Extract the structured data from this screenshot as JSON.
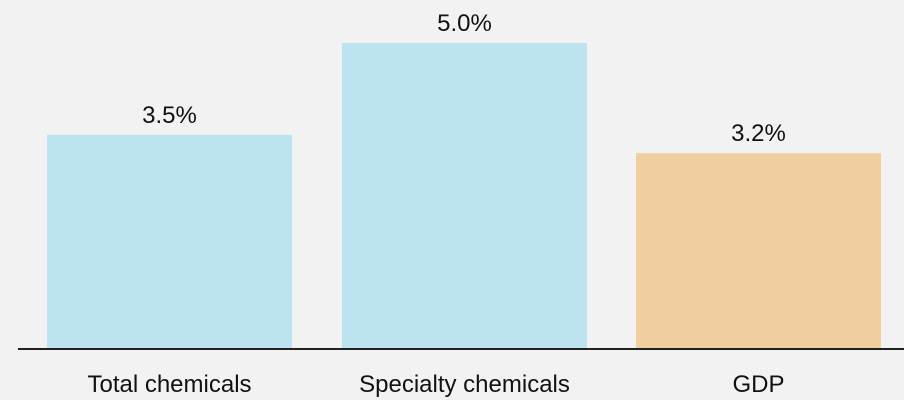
{
  "chart_data": {
    "type": "bar",
    "title": "",
    "xlabel": "",
    "ylabel": "",
    "categories": [
      "Total chemicals",
      "Specialty chemicals",
      "GDP"
    ],
    "values": [
      3.5,
      5.0,
      3.2
    ],
    "value_labels": [
      "3.5%",
      "5.0%",
      "3.2%"
    ],
    "unit": "%",
    "ylim": [
      0,
      5.0
    ],
    "grid": false,
    "legend": "none",
    "bar_colors": [
      "#bde3f0",
      "#bde3f0",
      "#efcea0"
    ],
    "axis_color": "#222222",
    "text_color": "#111111",
    "background": "#f2f2f2"
  }
}
